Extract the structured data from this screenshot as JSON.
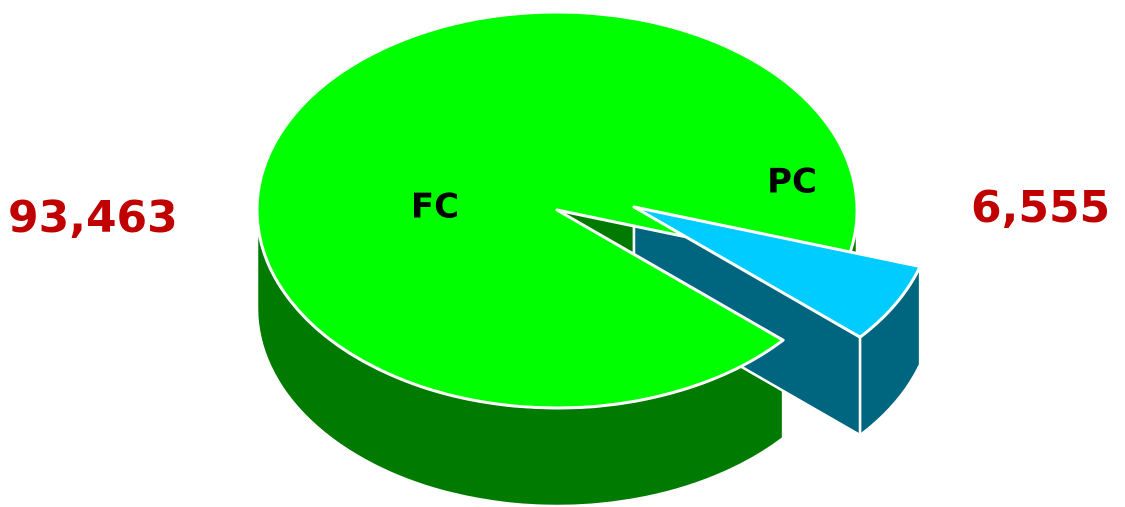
{
  "chart_data": {
    "type": "pie",
    "style": "3d-exploded",
    "title": "",
    "slices": [
      {
        "category": "FC",
        "value": 93463,
        "value_label": "93,463",
        "top_color": "#00ff00",
        "side_color": "#007a00"
      },
      {
        "category": "PC",
        "value": 6555,
        "value_label": "6,555",
        "top_color": "#00ccff",
        "side_color": "#00667f"
      }
    ],
    "exploded": "PC",
    "legend": "none",
    "label_color": "#c00000",
    "outline_color": "#ffffff"
  }
}
